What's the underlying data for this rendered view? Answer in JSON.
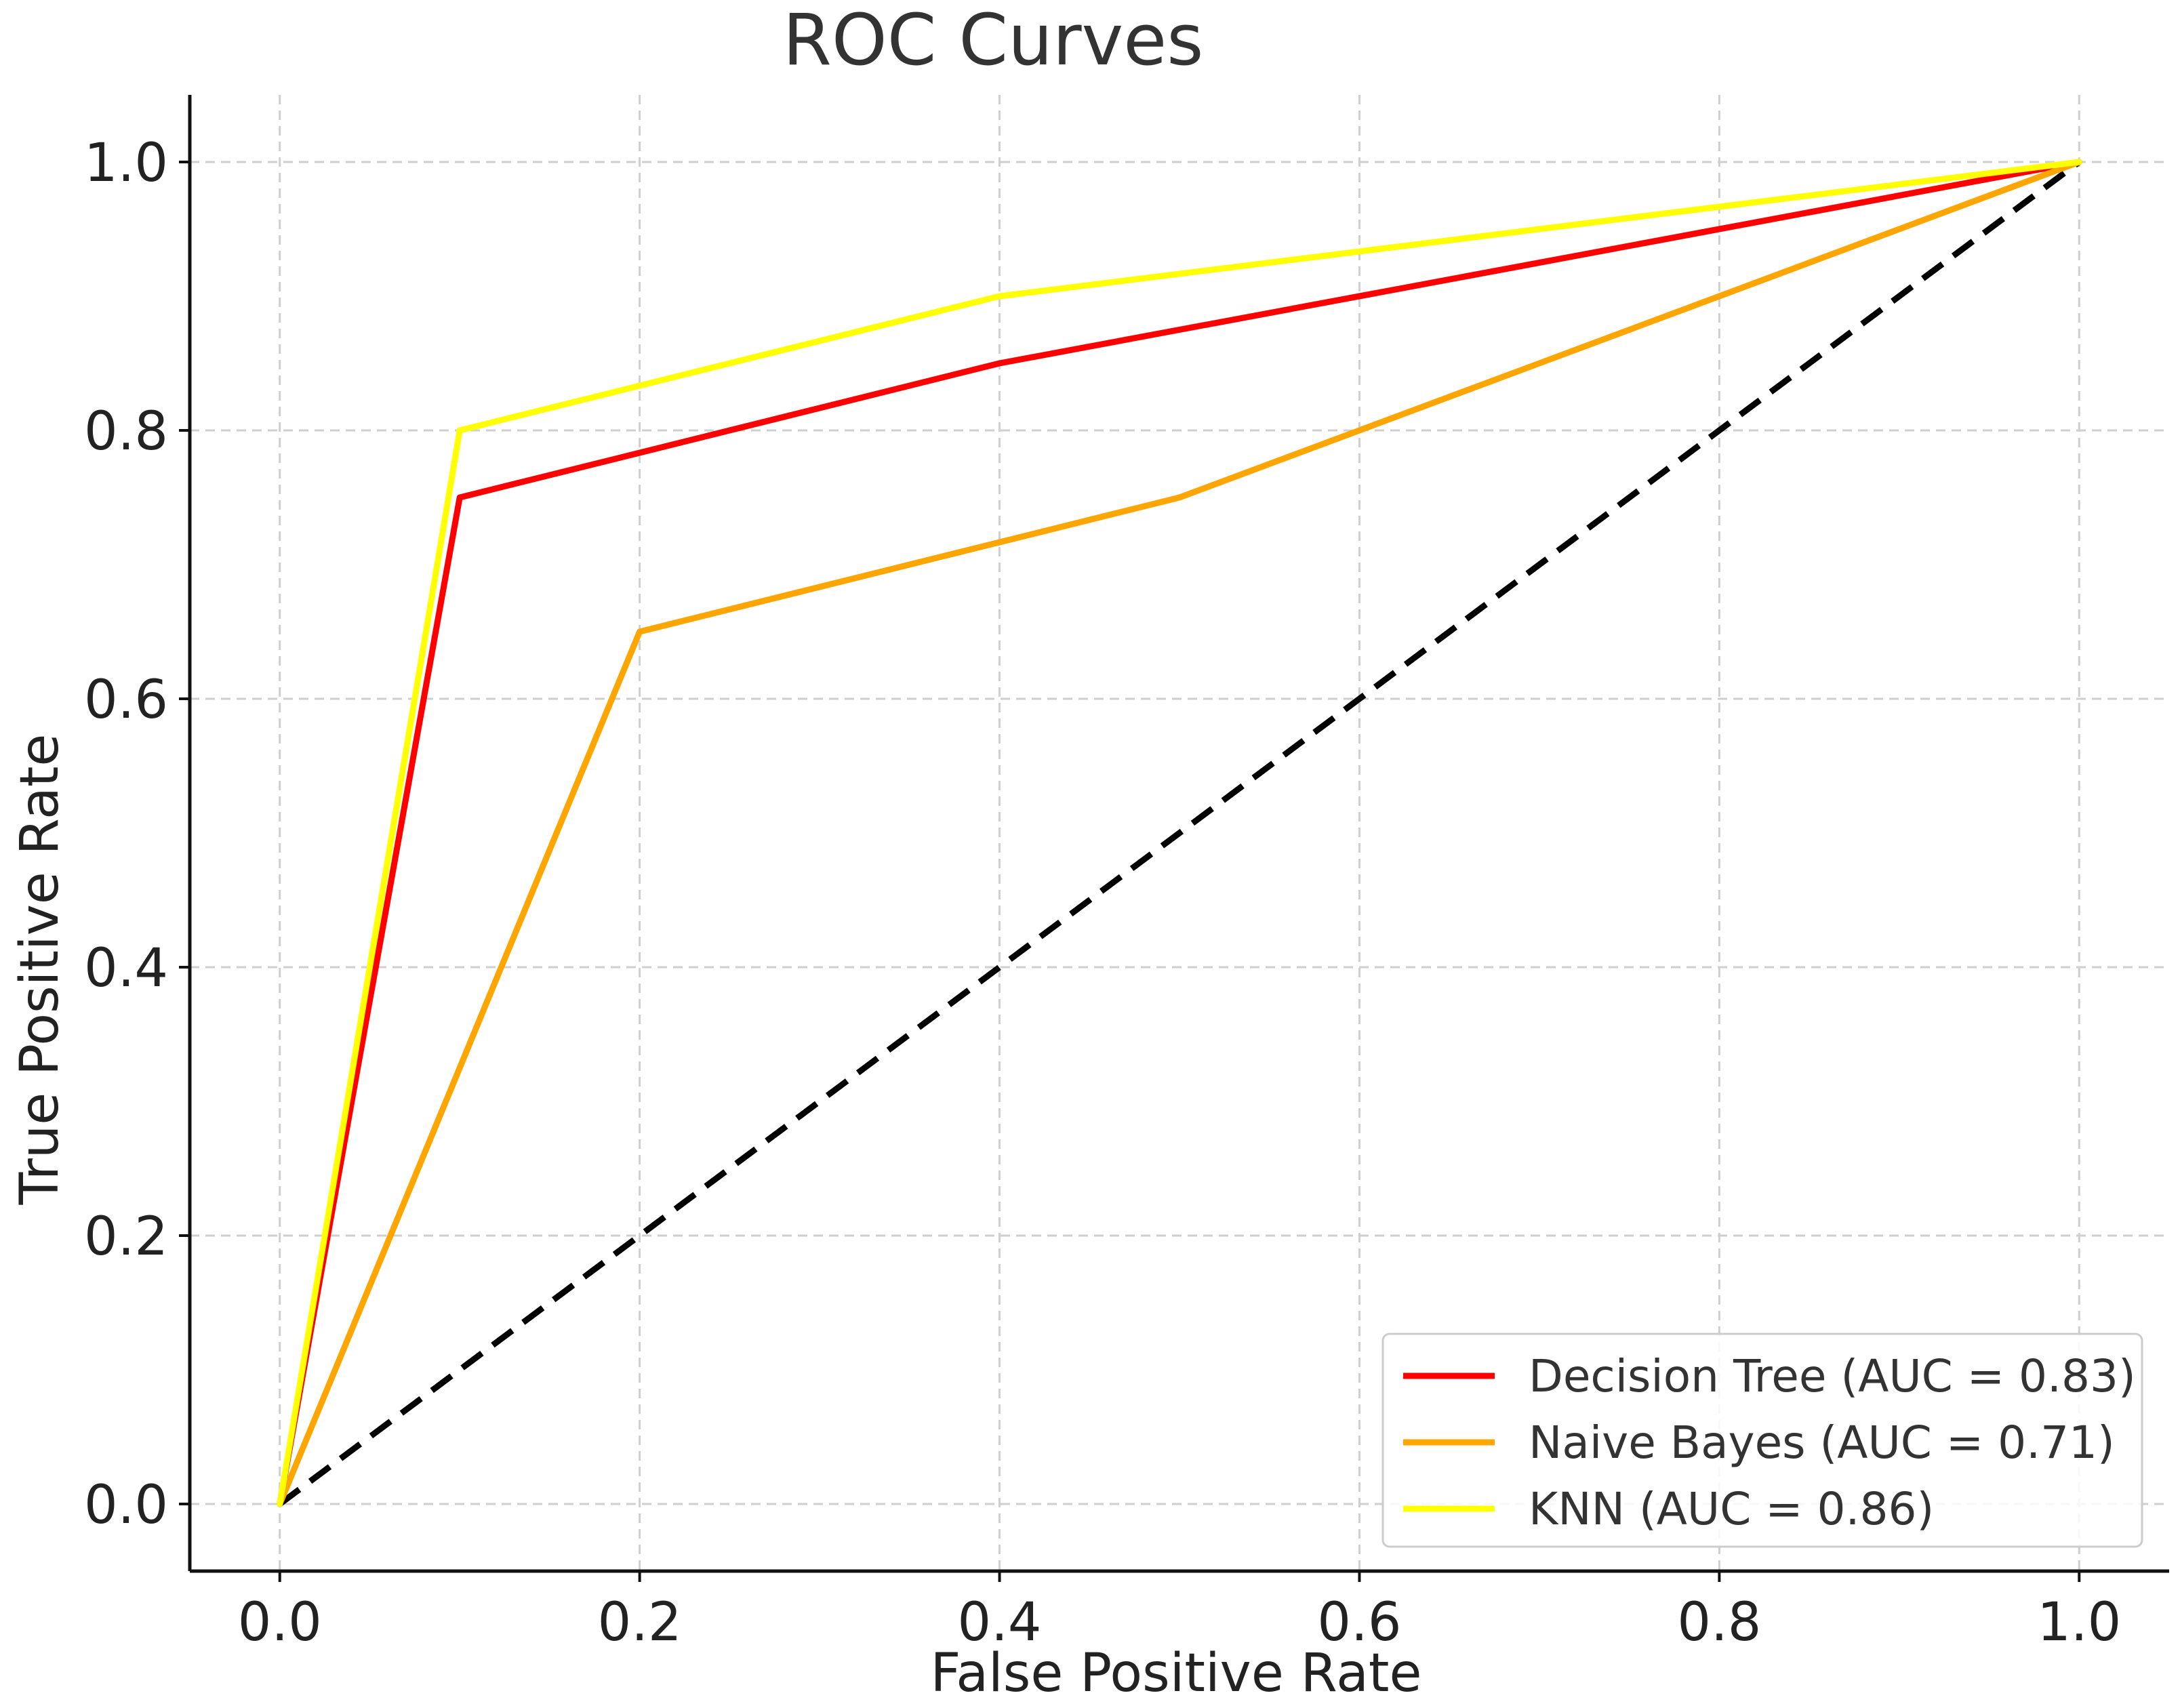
{
  "chart_data": {
    "type": "line",
    "title": "ROC Curves",
    "xlabel": "False Positive Rate",
    "ylabel": "True Positive Rate",
    "xlim": [
      -0.05,
      1.05
    ],
    "ylim": [
      -0.05,
      1.05
    ],
    "xticks": [
      "0.0",
      "0.2",
      "0.4",
      "0.6",
      "0.8",
      "1.0"
    ],
    "yticks": [
      "0.0",
      "0.2",
      "0.4",
      "0.6",
      "0.8",
      "1.0"
    ],
    "grid": true,
    "legend_position": "bottom-right",
    "series": [
      {
        "name": "Decision Tree (AUC = 0.83)",
        "color": "#ff0000",
        "x": [
          0.0,
          0.1,
          0.4,
          1.0
        ],
        "y": [
          0.0,
          0.75,
          0.85,
          1.0
        ]
      },
      {
        "name": "Naive Bayes (AUC = 0.71)",
        "color": "#ffa500",
        "x": [
          0.0,
          0.2,
          0.5,
          1.0
        ],
        "y": [
          0.0,
          0.65,
          0.75,
          1.0
        ]
      },
      {
        "name": "KNN (AUC = 0.86)",
        "color": "#ffff00",
        "x": [
          0.0,
          0.1,
          0.4,
          1.0
        ],
        "y": [
          0.0,
          0.8,
          0.9,
          1.0
        ]
      }
    ],
    "reference_line": {
      "x": [
        0.0,
        1.0
      ],
      "y": [
        0.0,
        1.0
      ],
      "color": "#000000",
      "style": "dashed"
    }
  }
}
